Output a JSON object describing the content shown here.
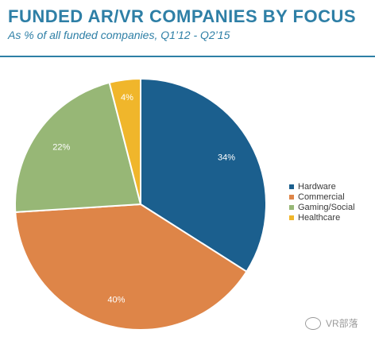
{
  "header": {
    "title": "FUNDED AR/VR COMPANIES BY FOCUS",
    "subtitle": "As % of all funded companies, Q1’12 - Q2’15"
  },
  "chart_data": {
    "type": "pie",
    "title": "FUNDED AR/VR COMPANIES BY FOCUS",
    "subtitle": "As % of all funded companies, Q1’12 - Q2’15",
    "slices": [
      {
        "name": "Hardware",
        "value": 34,
        "label": "34%",
        "color": "#1b5f8e"
      },
      {
        "name": "Commercial",
        "value": 40,
        "label": "40%",
        "color": "#de8548"
      },
      {
        "name": "Gaming/Social",
        "value": 22,
        "label": "22%",
        "color": "#97b776"
      },
      {
        "name": "Healthcare",
        "value": 4,
        "label": "4%",
        "color": "#f0b62b"
      }
    ],
    "legend_position": "right"
  },
  "legend": {
    "items": [
      "Hardware",
      "Commercial",
      "Gaming/Social",
      "Healthcare"
    ]
  },
  "watermark": {
    "text": "VR部落",
    "icon": "wechat-icon"
  }
}
